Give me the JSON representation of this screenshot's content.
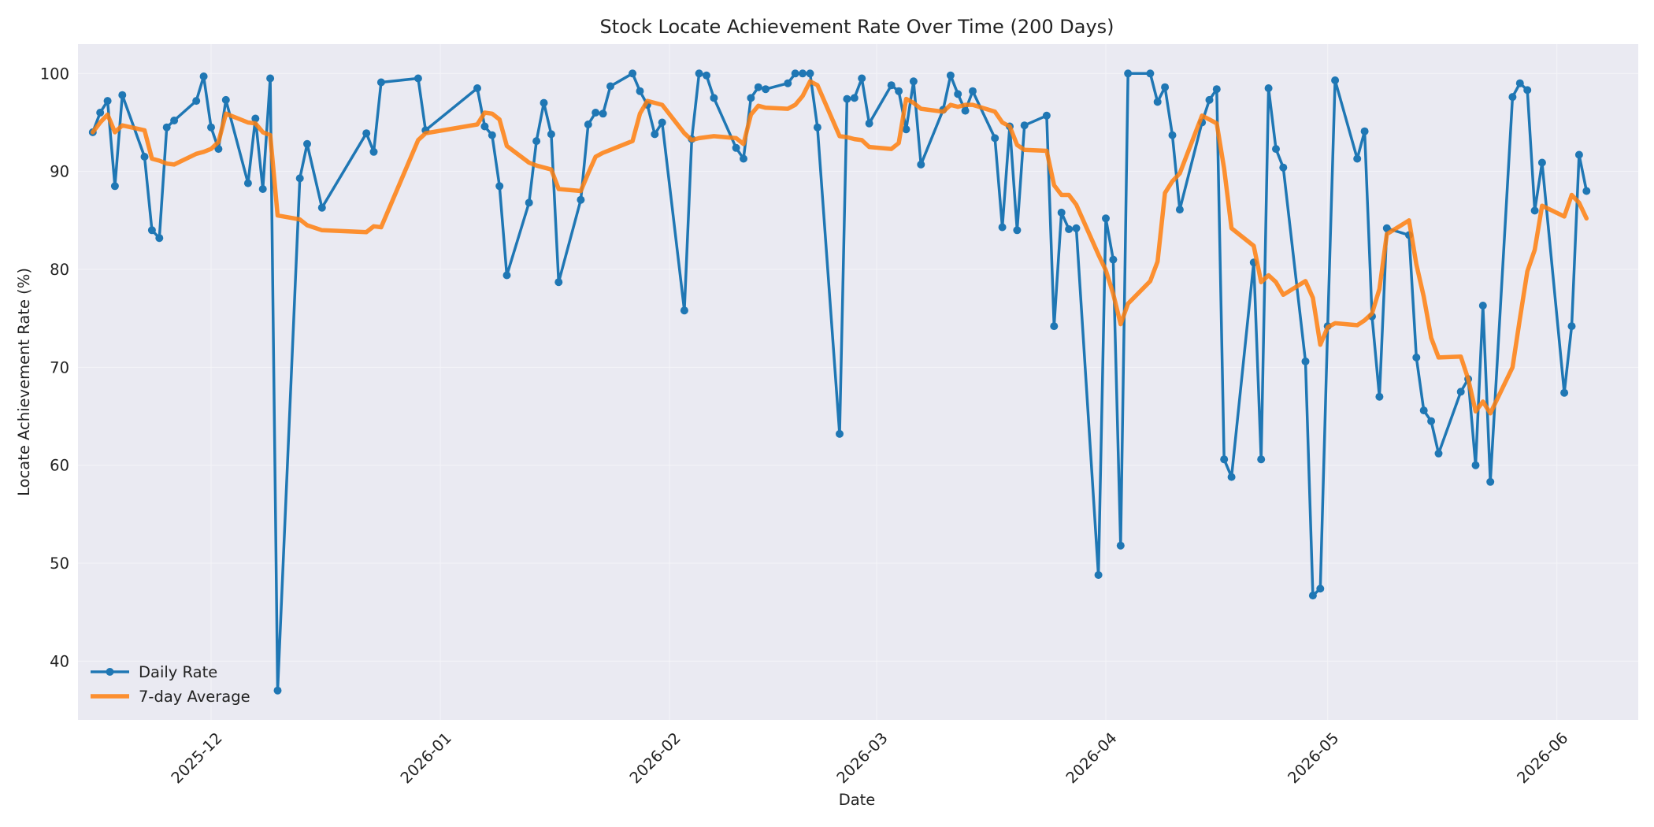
{
  "chart_data": {
    "type": "line",
    "title": "Stock Locate Achievement Rate Over Time (200 Days)",
    "xlabel": "Date",
    "ylabel": "Locate Achievement Rate (%)",
    "ylim": [
      34,
      103
    ],
    "xlim": [
      "2025-11-13",
      "2026-06-12"
    ],
    "yticks": [
      40,
      50,
      60,
      70,
      80,
      90,
      100
    ],
    "xticks": [
      "2025-12-01",
      "2026-01-01",
      "2026-02-01",
      "2026-03-01",
      "2026-04-01",
      "2026-05-01",
      "2026-06-01"
    ],
    "xtick_labels": [
      "2025-12",
      "2026-01",
      "2026-02",
      "2026-03",
      "2026-04",
      "2026-05",
      "2026-06"
    ],
    "grid": true,
    "legend_position": "lower-left",
    "colors": {
      "plot_background": "#eaeaf2",
      "grid": "#f4f4f8"
    },
    "series": [
      {
        "name": "Daily Rate",
        "color": "#1f77b4",
        "marker": "circle",
        "points": [
          [
            "2025-11-15",
            94.0
          ],
          [
            "2025-11-16",
            96.0
          ],
          [
            "2025-11-17",
            97.2
          ],
          [
            "2025-11-18",
            88.5
          ],
          [
            "2025-11-19",
            97.8
          ],
          [
            "2025-11-22",
            91.5
          ],
          [
            "2025-11-23",
            84.0
          ],
          [
            "2025-11-24",
            83.2
          ],
          [
            "2025-11-25",
            94.5
          ],
          [
            "2025-11-26",
            95.2
          ],
          [
            "2025-11-29",
            97.2
          ],
          [
            "2025-11-30",
            99.7
          ],
          [
            "2025-12-01",
            94.5
          ],
          [
            "2025-12-02",
            92.3
          ],
          [
            "2025-12-03",
            97.3
          ],
          [
            "2025-12-06",
            88.8
          ],
          [
            "2025-12-07",
            95.4
          ],
          [
            "2025-12-08",
            88.2
          ],
          [
            "2025-12-09",
            99.5
          ],
          [
            "2025-12-10",
            37.0
          ],
          [
            "2025-12-13",
            89.3
          ],
          [
            "2025-12-14",
            92.8
          ],
          [
            "2025-12-16",
            86.3
          ],
          [
            "2025-12-22",
            93.9
          ],
          [
            "2025-12-23",
            92.0
          ],
          [
            "2025-12-24",
            99.1
          ],
          [
            "2025-12-29",
            99.5
          ],
          [
            "2025-12-30",
            94.2
          ],
          [
            "2026-01-06",
            98.5
          ],
          [
            "2026-01-07",
            94.6
          ],
          [
            "2026-01-08",
            93.7
          ],
          [
            "2026-01-09",
            88.5
          ],
          [
            "2026-01-10",
            79.4
          ],
          [
            "2026-01-13",
            86.8
          ],
          [
            "2026-01-14",
            93.1
          ],
          [
            "2026-01-15",
            97.0
          ],
          [
            "2026-01-16",
            93.8
          ],
          [
            "2026-01-17",
            78.7
          ],
          [
            "2026-01-20",
            87.1
          ],
          [
            "2026-01-21",
            94.8
          ],
          [
            "2026-01-22",
            96.0
          ],
          [
            "2026-01-23",
            95.9
          ],
          [
            "2026-01-24",
            98.7
          ],
          [
            "2026-01-27",
            100.0
          ],
          [
            "2026-01-28",
            98.2
          ],
          [
            "2026-01-29",
            96.8
          ],
          [
            "2026-01-30",
            93.8
          ],
          [
            "2026-01-31",
            95.0
          ],
          [
            "2026-02-03",
            75.8
          ],
          [
            "2026-02-04",
            93.3
          ],
          [
            "2026-02-05",
            100.0
          ],
          [
            "2026-02-06",
            99.8
          ],
          [
            "2026-02-07",
            97.5
          ],
          [
            "2026-02-10",
            92.4
          ],
          [
            "2026-02-11",
            91.3
          ],
          [
            "2026-02-12",
            97.5
          ],
          [
            "2026-02-13",
            98.6
          ],
          [
            "2026-02-14",
            98.4
          ],
          [
            "2026-02-17",
            99.0
          ],
          [
            "2026-02-18",
            100.0
          ],
          [
            "2026-02-19",
            100.0
          ],
          [
            "2026-02-20",
            100.0
          ],
          [
            "2026-02-21",
            94.5
          ],
          [
            "2026-02-24",
            63.2
          ],
          [
            "2026-02-25",
            97.4
          ],
          [
            "2026-02-26",
            97.5
          ],
          [
            "2026-02-27",
            99.5
          ],
          [
            "2026-02-28",
            94.9
          ],
          [
            "2026-03-03",
            98.8
          ],
          [
            "2026-03-04",
            98.2
          ],
          [
            "2026-03-05",
            94.3
          ],
          [
            "2026-03-06",
            99.2
          ],
          [
            "2026-03-07",
            90.7
          ],
          [
            "2026-03-10",
            96.3
          ],
          [
            "2026-03-11",
            99.8
          ],
          [
            "2026-03-12",
            97.9
          ],
          [
            "2026-03-13",
            96.2
          ],
          [
            "2026-03-14",
            98.2
          ],
          [
            "2026-03-17",
            93.4
          ],
          [
            "2026-03-18",
            84.3
          ],
          [
            "2026-03-19",
            94.6
          ],
          [
            "2026-03-20",
            84.0
          ],
          [
            "2026-03-21",
            94.7
          ],
          [
            "2026-03-24",
            95.7
          ],
          [
            "2026-03-25",
            74.2
          ],
          [
            "2026-03-26",
            85.8
          ],
          [
            "2026-03-27",
            84.1
          ],
          [
            "2026-03-28",
            84.2
          ],
          [
            "2026-03-31",
            48.8
          ],
          [
            "2026-04-01",
            85.2
          ],
          [
            "2026-04-02",
            81.0
          ],
          [
            "2026-04-03",
            51.8
          ],
          [
            "2026-04-04",
            100.0
          ],
          [
            "2026-04-07",
            100.0
          ],
          [
            "2026-04-08",
            97.1
          ],
          [
            "2026-04-09",
            98.6
          ],
          [
            "2026-04-10",
            93.7
          ],
          [
            "2026-04-11",
            86.1
          ],
          [
            "2026-04-14",
            95.0
          ],
          [
            "2026-04-15",
            97.3
          ],
          [
            "2026-04-16",
            98.4
          ],
          [
            "2026-04-17",
            60.6
          ],
          [
            "2026-04-18",
            58.8
          ],
          [
            "2026-04-21",
            80.7
          ],
          [
            "2026-04-22",
            60.6
          ],
          [
            "2026-04-23",
            98.5
          ],
          [
            "2026-04-24",
            92.3
          ],
          [
            "2026-04-25",
            90.4
          ],
          [
            "2026-04-28",
            70.6
          ],
          [
            "2026-04-29",
            46.7
          ],
          [
            "2026-04-30",
            47.4
          ],
          [
            "2026-05-01",
            74.2
          ],
          [
            "2026-05-02",
            99.3
          ],
          [
            "2026-05-05",
            91.3
          ],
          [
            "2026-05-06",
            94.1
          ],
          [
            "2026-05-07",
            75.2
          ],
          [
            "2026-05-08",
            67.0
          ],
          [
            "2026-05-09",
            84.2
          ],
          [
            "2026-05-12",
            83.5
          ],
          [
            "2026-05-13",
            71.0
          ],
          [
            "2026-05-14",
            65.6
          ],
          [
            "2026-05-15",
            64.5
          ],
          [
            "2026-05-16",
            61.2
          ],
          [
            "2026-05-19",
            67.5
          ],
          [
            "2026-05-20",
            68.8
          ],
          [
            "2026-05-21",
            60.0
          ],
          [
            "2026-05-22",
            76.3
          ],
          [
            "2026-05-23",
            58.3
          ],
          [
            "2026-05-26",
            97.6
          ],
          [
            "2026-05-27",
            99.0
          ],
          [
            "2026-05-28",
            98.3
          ],
          [
            "2026-05-29",
            86.0
          ],
          [
            "2026-05-30",
            90.9
          ],
          [
            "2026-06-02",
            67.4
          ],
          [
            "2026-06-03",
            74.2
          ],
          [
            "2026-06-04",
            91.7
          ],
          [
            "2026-06-05",
            88.0
          ]
        ]
      },
      {
        "name": "7-day Average",
        "color": "#ff7f0e",
        "marker": "none",
        "points": [
          [
            "2025-11-15",
            94.0
          ],
          [
            "2025-11-16",
            95.0
          ],
          [
            "2025-11-17",
            95.8
          ],
          [
            "2025-11-18",
            94.0
          ],
          [
            "2025-11-19",
            94.7
          ],
          [
            "2025-11-22",
            94.2
          ],
          [
            "2025-11-23",
            91.3
          ],
          [
            "2025-11-24",
            91.1
          ],
          [
            "2025-11-25",
            90.8
          ],
          [
            "2025-11-26",
            90.7
          ],
          [
            "2025-11-29",
            91.8
          ],
          [
            "2025-11-30",
            92.0
          ],
          [
            "2025-12-01",
            92.3
          ],
          [
            "2025-12-02",
            93.0
          ],
          [
            "2025-12-03",
            95.9
          ],
          [
            "2025-12-06",
            95.0
          ],
          [
            "2025-12-07",
            94.9
          ],
          [
            "2025-12-08",
            94.0
          ],
          [
            "2025-12-09",
            93.7
          ],
          [
            "2025-12-10",
            85.5
          ],
          [
            "2025-12-13",
            85.1
          ],
          [
            "2025-12-14",
            84.5
          ],
          [
            "2025-12-16",
            84.0
          ],
          [
            "2025-12-22",
            83.8
          ],
          [
            "2025-12-23",
            84.4
          ],
          [
            "2025-12-24",
            84.3
          ],
          [
            "2025-12-29",
            93.2
          ],
          [
            "2025-12-30",
            93.9
          ],
          [
            "2026-01-06",
            94.8
          ],
          [
            "2026-01-07",
            96.0
          ],
          [
            "2026-01-08",
            95.9
          ],
          [
            "2026-01-09",
            95.3
          ],
          [
            "2026-01-10",
            92.6
          ],
          [
            "2026-01-13",
            90.9
          ],
          [
            "2026-01-14",
            90.6
          ],
          [
            "2026-01-15",
            90.4
          ],
          [
            "2026-01-16",
            90.2
          ],
          [
            "2026-01-17",
            88.2
          ],
          [
            "2026-01-20",
            88.0
          ],
          [
            "2026-01-21",
            89.8
          ],
          [
            "2026-01-22",
            91.5
          ],
          [
            "2026-01-23",
            91.9
          ],
          [
            "2026-01-24",
            92.2
          ],
          [
            "2026-01-27",
            93.1
          ],
          [
            "2026-01-28",
            95.9
          ],
          [
            "2026-01-29",
            97.2
          ],
          [
            "2026-01-30",
            97.0
          ],
          [
            "2026-01-31",
            96.8
          ],
          [
            "2026-02-03",
            93.9
          ],
          [
            "2026-02-04",
            93.2
          ],
          [
            "2026-02-05",
            93.4
          ],
          [
            "2026-02-06",
            93.5
          ],
          [
            "2026-02-07",
            93.6
          ],
          [
            "2026-02-10",
            93.4
          ],
          [
            "2026-02-11",
            92.8
          ],
          [
            "2026-02-12",
            95.8
          ],
          [
            "2026-02-13",
            96.7
          ],
          [
            "2026-02-14",
            96.5
          ],
          [
            "2026-02-17",
            96.4
          ],
          [
            "2026-02-18",
            96.8
          ],
          [
            "2026-02-19",
            97.7
          ],
          [
            "2026-02-20",
            99.2
          ],
          [
            "2026-02-21",
            98.8
          ],
          [
            "2026-02-24",
            93.6
          ],
          [
            "2026-02-25",
            93.5
          ],
          [
            "2026-02-26",
            93.3
          ],
          [
            "2026-02-27",
            93.2
          ],
          [
            "2026-02-28",
            92.5
          ],
          [
            "2026-03-03",
            92.3
          ],
          [
            "2026-03-04",
            92.9
          ],
          [
            "2026-03-05",
            97.4
          ],
          [
            "2026-03-06",
            97.0
          ],
          [
            "2026-03-07",
            96.4
          ],
          [
            "2026-03-10",
            96.1
          ],
          [
            "2026-03-11",
            96.8
          ],
          [
            "2026-03-12",
            96.6
          ],
          [
            "2026-03-13",
            96.8
          ],
          [
            "2026-03-14",
            96.8
          ],
          [
            "2026-03-17",
            96.1
          ],
          [
            "2026-03-18",
            95.0
          ],
          [
            "2026-03-19",
            94.6
          ],
          [
            "2026-03-20",
            92.7
          ],
          [
            "2026-03-21",
            92.2
          ],
          [
            "2026-03-24",
            92.1
          ],
          [
            "2026-03-25",
            88.6
          ],
          [
            "2026-03-26",
            87.6
          ],
          [
            "2026-03-27",
            87.6
          ],
          [
            "2026-03-28",
            86.6
          ],
          [
            "2026-03-31",
            81.5
          ],
          [
            "2026-04-01",
            79.9
          ],
          [
            "2026-04-02",
            77.5
          ],
          [
            "2026-04-03",
            74.4
          ],
          [
            "2026-04-04",
            76.5
          ],
          [
            "2026-04-07",
            78.8
          ],
          [
            "2026-04-08",
            80.8
          ],
          [
            "2026-04-09",
            87.8
          ],
          [
            "2026-04-10",
            89.0
          ],
          [
            "2026-04-11",
            89.8
          ],
          [
            "2026-04-14",
            95.7
          ],
          [
            "2026-04-15",
            95.3
          ],
          [
            "2026-04-16",
            94.9
          ],
          [
            "2026-04-17",
            90.3
          ],
          [
            "2026-04-18",
            84.2
          ],
          [
            "2026-04-21",
            82.4
          ],
          [
            "2026-04-22",
            78.7
          ],
          [
            "2026-04-23",
            79.4
          ],
          [
            "2026-04-24",
            78.7
          ],
          [
            "2026-04-25",
            77.4
          ],
          [
            "2026-04-28",
            78.8
          ],
          [
            "2026-04-29",
            77.1
          ],
          [
            "2026-04-30",
            72.3
          ],
          [
            "2026-05-01",
            74.1
          ],
          [
            "2026-05-02",
            74.5
          ],
          [
            "2026-05-05",
            74.3
          ],
          [
            "2026-05-06",
            74.8
          ],
          [
            "2026-05-07",
            75.5
          ],
          [
            "2026-05-08",
            78.0
          ],
          [
            "2026-05-09",
            83.6
          ],
          [
            "2026-05-12",
            85.0
          ],
          [
            "2026-05-13",
            80.5
          ],
          [
            "2026-05-14",
            77.2
          ],
          [
            "2026-05-15",
            73.0
          ],
          [
            "2026-05-16",
            71.0
          ],
          [
            "2026-05-19",
            71.1
          ],
          [
            "2026-05-20",
            68.8
          ],
          [
            "2026-05-21",
            65.5
          ],
          [
            "2026-05-22",
            66.5
          ],
          [
            "2026-05-23",
            65.3
          ],
          [
            "2026-05-26",
            70.0
          ],
          [
            "2026-05-27",
            75.0
          ],
          [
            "2026-05-28",
            79.8
          ],
          [
            "2026-05-29",
            82.0
          ],
          [
            "2026-05-30",
            86.5
          ],
          [
            "2026-06-02",
            85.4
          ],
          [
            "2026-06-03",
            87.6
          ],
          [
            "2026-06-04",
            86.8
          ],
          [
            "2026-06-05",
            85.2
          ]
        ]
      }
    ]
  }
}
